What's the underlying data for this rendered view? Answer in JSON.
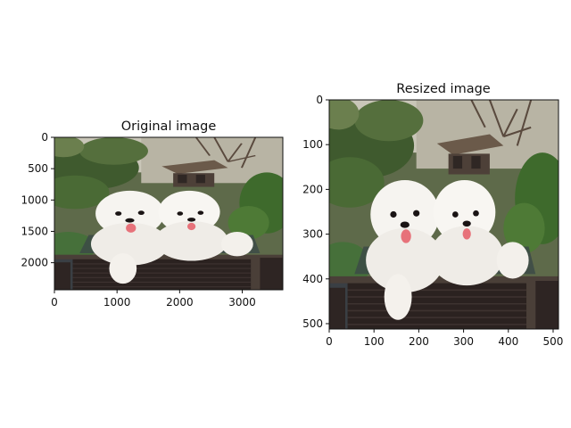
{
  "figure": {
    "background": "#ffffff"
  },
  "chart_data": [
    {
      "type": "image",
      "title": "Original image",
      "xlabel": "",
      "ylabel": "",
      "xlim": [
        0,
        3648
      ],
      "ylim": [
        2432,
        0
      ],
      "xticks": [
        0,
        1000,
        2000,
        3000
      ],
      "yticks": [
        0,
        500,
        1000,
        1500,
        2000
      ],
      "image_content": "photo of two white fluffy bichon frise dogs in a dark wicker chair outdoors in a garden"
    },
    {
      "type": "image",
      "title": "Resized image",
      "xlabel": "",
      "ylabel": "",
      "xlim": [
        0,
        512
      ],
      "ylim": [
        512,
        0
      ],
      "xticks": [
        0,
        100,
        200,
        300,
        400,
        500
      ],
      "yticks": [
        0,
        100,
        200,
        300,
        400,
        500
      ],
      "image_content": "same photo of two white fluffy bichon frise dogs resized to a square"
    }
  ]
}
